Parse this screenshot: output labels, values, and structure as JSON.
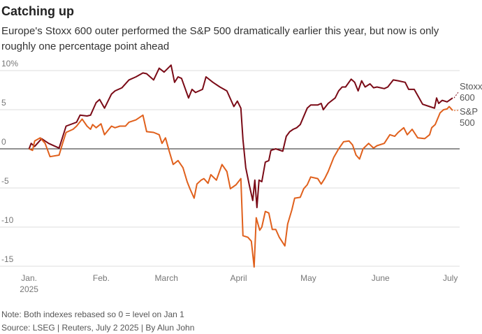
{
  "chart_data": {
    "type": "line",
    "title": "Catching up",
    "subtitle": [
      "Europe's Stoxx 600 outer performed the S&P 500 dramatically earlier this year, but now is only",
      "roughly one percentage point ahead"
    ],
    "note": "Note: Both indexes rebased so 0 = level on Jan 1",
    "source": "Source: LSEG | Reuters, July 2 2025 | By Alun John",
    "xlim": [
      -12.5,
      185
    ],
    "ylim": [
      -15,
      10
    ],
    "yticks": [
      {
        "value": 10,
        "label": "10%"
      },
      5,
      0,
      -5,
      -10,
      -15
    ],
    "xticks": [
      {
        "value": 0,
        "label": "Jan.\n2025"
      },
      {
        "value": 31,
        "label": "Feb."
      },
      {
        "value": 59,
        "label": "March"
      },
      {
        "value": 90,
        "label": "April"
      },
      {
        "value": 120,
        "label": "May"
      },
      {
        "value": 151,
        "label": "June"
      },
      {
        "value": 181,
        "label": "July"
      }
    ],
    "grid": true,
    "series": [
      {
        "name": "Stoxx 600",
        "color": "#7a0a16",
        "x": [
          0,
          0.9,
          2.4,
          5.4,
          8.4,
          12.9,
          15.9,
          20.4,
          21.9,
          24.9,
          26.4,
          28.8,
          30.3,
          32.4,
          35.4,
          36.9,
          39.9,
          42.9,
          45.9,
          48.9,
          50.5,
          53.5,
          55.9,
          58.0,
          61.0,
          62.5,
          64.0,
          65.5,
          68.5,
          70.0,
          71.5,
          74.5,
          76.0,
          79.0,
          82.0,
          85.0,
          88.0,
          89.5,
          91.0,
          91.9,
          93.1,
          94.6,
          96.1,
          97.0,
          97.9,
          98.8,
          100.0,
          101.5,
          103.0,
          103.9,
          106.0,
          109.0,
          110.5,
          112.0,
          113.5,
          115.0,
          116.5,
          119.5,
          121.0,
          124.0,
          125.5,
          126.4,
          128.5,
          131.5,
          133.0,
          134.5,
          136.0,
          138.4,
          139.9,
          141.4,
          142.9,
          144.4,
          146.5,
          148.0,
          149.5,
          152.6,
          154.1,
          156.5,
          158.6,
          161.6,
          163.1,
          165.5,
          167.6,
          169.1,
          172.1,
          174.2,
          175.1,
          176.0,
          177.5,
          179.6,
          182.0
        ],
        "values": [
          0,
          0.7,
          0.3,
          1.3,
          0.7,
          0.1,
          2.9,
          3.4,
          4.3,
          4.2,
          4.3,
          5.9,
          6.3,
          5.2,
          7.0,
          7.4,
          7.8,
          8.8,
          9.2,
          9.7,
          9.6,
          8.8,
          10.3,
          9.8,
          10.7,
          8.5,
          9.2,
          9.0,
          6.5,
          7.6,
          7.2,
          7.6,
          9.2,
          8.5,
          7.9,
          7.4,
          5.4,
          6.1,
          5.2,
          1.2,
          -2.4,
          -4.6,
          -6.6,
          -4.0,
          -7.5,
          -4.0,
          -4.2,
          -1.7,
          -1.5,
          -0.2,
          0,
          -0.3,
          1.6,
          2.2,
          2.5,
          2.7,
          3.1,
          5.2,
          5.6,
          5.6,
          5.8,
          5.0,
          5.8,
          6.5,
          7.4,
          7.9,
          7.9,
          8.9,
          8.5,
          7.4,
          8.7,
          7.9,
          8.3,
          7.8,
          7.9,
          7.7,
          7.9,
          8.8,
          8.7,
          8.5,
          7.6,
          7.6,
          6.5,
          5.7,
          5.4,
          5.2,
          6.5,
          5.8,
          6.2,
          6.0,
          6.5
        ]
      },
      {
        "name": "S&P 500",
        "color": "#e0601c",
        "x": [
          0,
          1.5,
          2.4,
          4.8,
          6.9,
          9.0,
          12.9,
          14.4,
          15.9,
          18.9,
          20.4,
          22.8,
          24.9,
          26.4,
          27.3,
          28.8,
          30.9,
          32.4,
          35.4,
          36.9,
          39.0,
          41.4,
          42.9,
          45.9,
          48.9,
          50.5,
          53.5,
          55.9,
          57.1,
          58.6,
          60.1,
          61.9,
          64.0,
          66.1,
          67.9,
          69.1,
          70.9,
          72.1,
          73.9,
          75.1,
          76.9,
          78.1,
          80.5,
          82.9,
          85.0,
          86.5,
          88.9,
          91.0,
          91.9,
          94.0,
          95.5,
          96.7,
          97.6,
          99.1,
          100.0,
          101.5,
          103.0,
          104.5,
          106.0,
          107.5,
          109.9,
          111.1,
          112.9,
          114.1,
          116.5,
          118.0,
          119.5,
          121.0,
          124.0,
          125.5,
          127.0,
          128.5,
          130.9,
          133.0,
          135.1,
          137.5,
          139.0,
          140.5,
          142.0,
          143.5,
          145.9,
          148.0,
          149.5,
          152.6,
          155.0,
          157.1,
          158.6,
          161.0,
          162.5,
          164.6,
          167.0,
          170.0,
          172.1,
          173.0,
          174.5,
          176.6,
          178.1,
          179.6,
          180.5,
          182.0
        ],
        "values": [
          0,
          -0.2,
          1.0,
          1.4,
          0.7,
          -1.0,
          -0.8,
          0.7,
          2.1,
          2.5,
          2.9,
          3.8,
          2.9,
          2.5,
          3.1,
          2.7,
          3.2,
          1.8,
          2.9,
          2.7,
          2.9,
          2.9,
          3.4,
          3.7,
          4.3,
          2.2,
          2.1,
          1.8,
          0.7,
          1.4,
          -0.2,
          -2.0,
          -1.5,
          -2.4,
          -4.2,
          -5.1,
          -6.3,
          -4.5,
          -4.0,
          -3.8,
          -4.4,
          -3.3,
          -4.0,
          -2.0,
          -2.9,
          -5.1,
          -4.6,
          -3.8,
          -11.1,
          -11.3,
          -11.8,
          -15.1,
          -8.8,
          -10.4,
          -10.0,
          -8.0,
          -8.2,
          -10.3,
          -10.3,
          -11.3,
          -12.4,
          -9.6,
          -7.8,
          -6.3,
          -6.2,
          -5.1,
          -4.6,
          -3.6,
          -3.8,
          -4.5,
          -3.8,
          -2.9,
          -1.1,
          0,
          0.9,
          1.0,
          0.5,
          -0.8,
          -1.3,
          0,
          0.7,
          0.1,
          0.4,
          0.7,
          1.8,
          1.6,
          2.1,
          2.7,
          1.8,
          2.5,
          1.4,
          1.3,
          1.8,
          2.7,
          3.1,
          4.6,
          5.0,
          5.1,
          5.4,
          4.9
        ]
      }
    ]
  }
}
